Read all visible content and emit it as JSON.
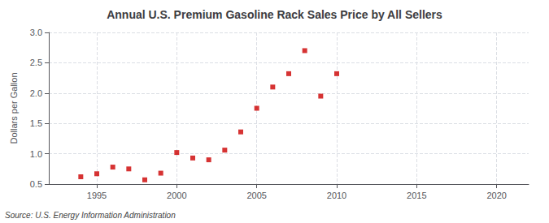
{
  "chart_data": {
    "type": "scatter",
    "title": "Annual U.S. Premium Gasoline Rack Sales Price by All Sellers",
    "ylabel": "Dollars per Gallon",
    "source": "Source: U.S. Energy Information Administration",
    "x": [
      1994,
      1995,
      1996,
      1997,
      1998,
      1999,
      2000,
      2001,
      2002,
      2003,
      2004,
      2005,
      2006,
      2007,
      2008,
      2009,
      2010
    ],
    "values": [
      0.62,
      0.67,
      0.78,
      0.75,
      0.57,
      0.68,
      1.02,
      0.93,
      0.9,
      1.06,
      1.36,
      1.75,
      2.1,
      2.32,
      2.7,
      1.95,
      2.32
    ],
    "color": "#cc0000",
    "marker": "square",
    "xlim": [
      1992,
      2022
    ],
    "xticks": [
      1995,
      2000,
      2005,
      2010,
      2015,
      2020
    ],
    "ylim": [
      0.5,
      3.0
    ],
    "yticks": [
      0.5,
      {
        "value": 1,
        "label": "1.0"
      },
      1.5,
      {
        "value": 2,
        "label": "2.0"
      },
      2.5,
      {
        "value": 3,
        "label": "3.0"
      }
    ],
    "grid": true
  }
}
